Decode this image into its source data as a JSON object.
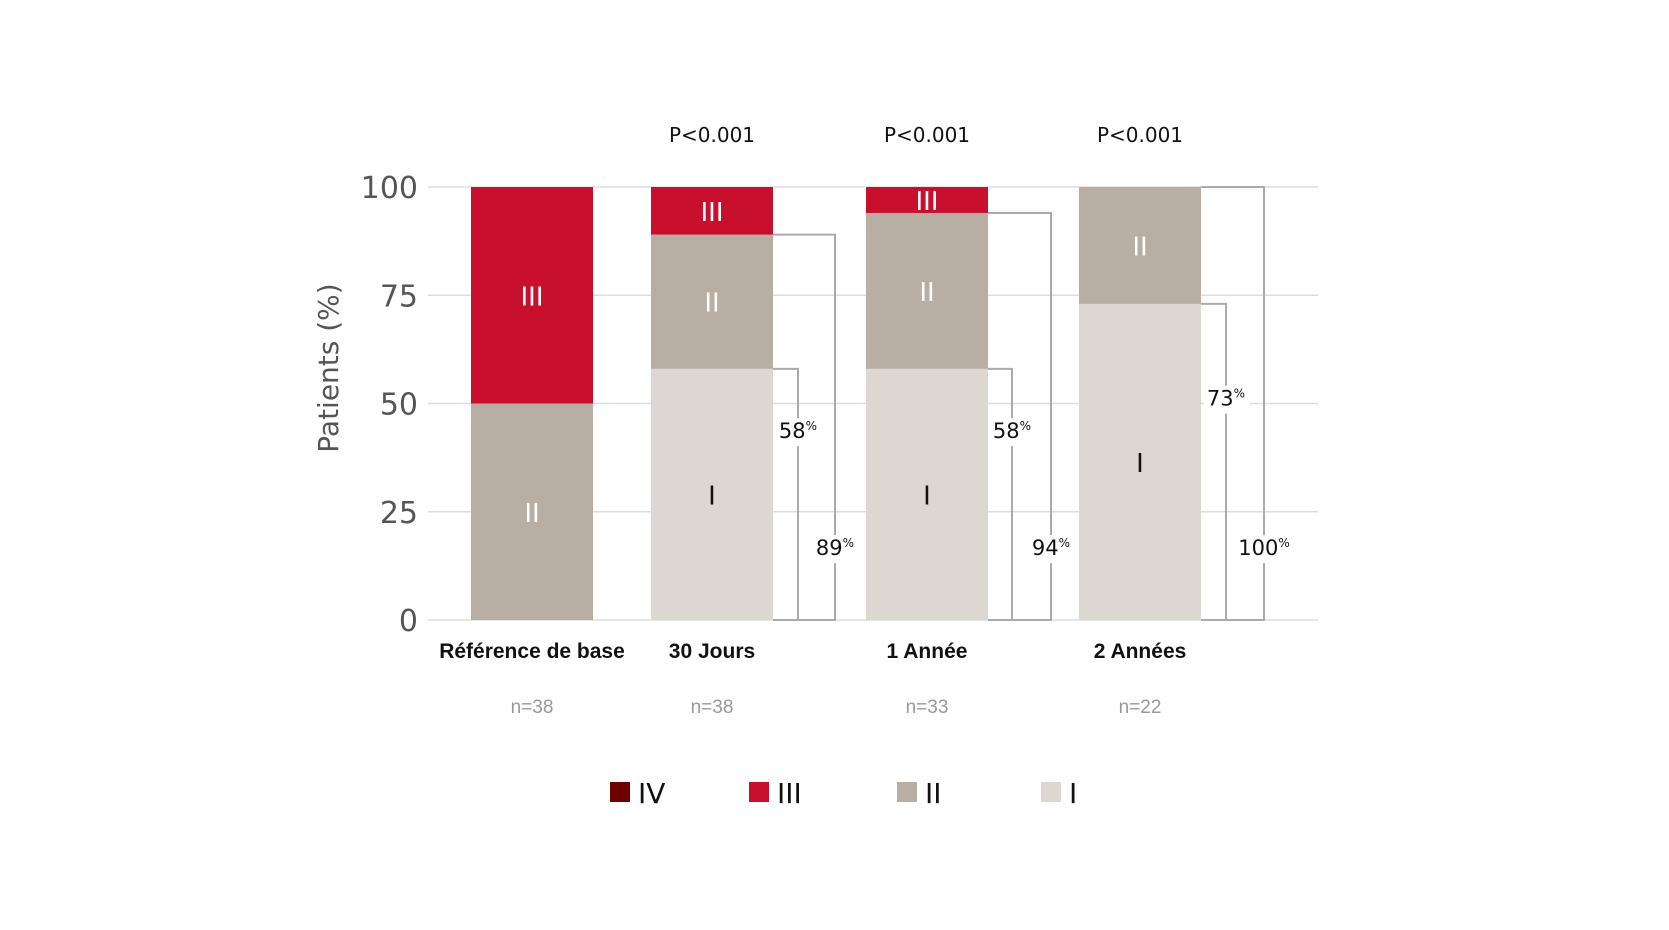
{
  "chart_data": {
    "type": "bar",
    "stacked": true,
    "ylabel": "Patients (%)",
    "ylim": [
      0,
      100
    ],
    "yticks": [
      "0",
      "25",
      "50",
      "75",
      "100"
    ],
    "grid": true,
    "legend_placement": "bottom",
    "categories": [
      "Référence de base",
      "30 Jours",
      "1 Année",
      "2 Années"
    ],
    "n_labels": [
      "n=38",
      "n=38",
      "n=33",
      "n=22"
    ],
    "p_values": [
      "",
      "P<0.001",
      "P<0.001",
      "P<0.001"
    ],
    "series": [
      {
        "name": "I",
        "color": "#dcd8d1",
        "text_color": "#111111",
        "values": [
          0,
          58,
          58,
          73
        ]
      },
      {
        "name": "II",
        "color": "#b9aea3",
        "text_color": "#ffffff",
        "values": [
          50,
          31,
          36,
          27
        ]
      },
      {
        "name": "III",
        "color": "#c8102e",
        "text_color": "#ffffff",
        "values": [
          50,
          11,
          6,
          0
        ]
      },
      {
        "name": "IV",
        "color": "#6e0000",
        "text_color": "#ffffff",
        "values": [
          0,
          0,
          0,
          0
        ]
      }
    ],
    "brackets": [
      null,
      {
        "inner": "58",
        "outer": "89"
      },
      {
        "inner": "58",
        "outer": "94"
      },
      {
        "inner": "73",
        "outer": "100"
      }
    ],
    "percent_sign": "%",
    "legend_order": [
      "IV",
      "III",
      "II",
      "I"
    ]
  }
}
